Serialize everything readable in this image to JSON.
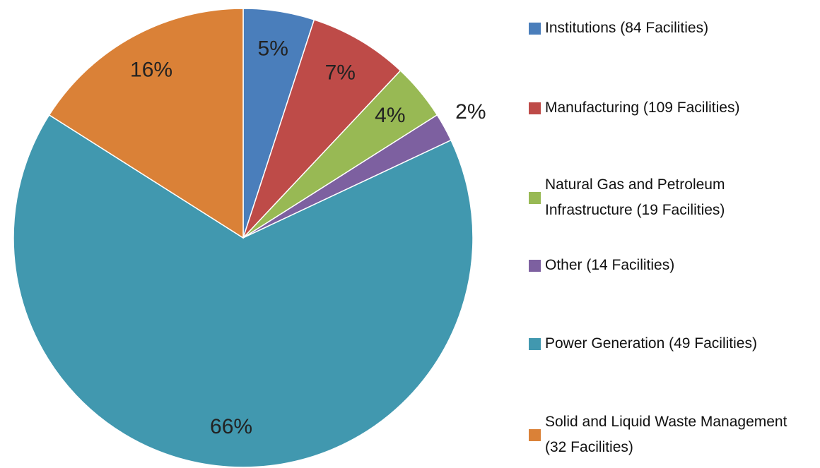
{
  "chart_data": {
    "type": "pie",
    "categories": [
      "Institutions (84 Facilities)",
      "Manufacturing (109 Facilities)",
      "Natural Gas and Petroleum Infrastructure (19 Facilities)",
      "Other (14 Facilities)",
      "Power Generation (49 Facilities)",
      "Solid and Liquid Waste Management (32 Facilities)"
    ],
    "values": [
      5,
      7,
      4,
      2,
      66,
      16
    ],
    "value_labels": [
      "5%",
      "7%",
      "4%",
      "2%",
      "66%",
      "16%"
    ],
    "colors": [
      "#4a7ebb",
      "#be4b48",
      "#98b954",
      "#7d60a0",
      "#4198af",
      "#da8137"
    ],
    "legend": "right"
  }
}
